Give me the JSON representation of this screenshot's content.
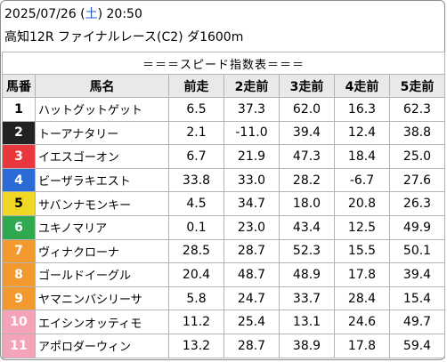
{
  "header": {
    "date_prefix": "2025/07/26 (",
    "weekday": "土",
    "date_suffix": ") 20:50",
    "race": "高知12R ファイナルレース(C2) ダ1600m"
  },
  "table": {
    "banner": "＝＝＝スピード指数表＝＝＝",
    "columns": [
      "馬番",
      "馬名",
      "前走",
      "2走前",
      "3走前",
      "4走前",
      "5走前"
    ],
    "rows": [
      {
        "num": "1",
        "name": "ハットグットゲット",
        "v": [
          "6.5",
          "37.3",
          "62.0",
          "16.3",
          "62.3"
        ],
        "bg": "#ffffff",
        "fg": "#000000"
      },
      {
        "num": "2",
        "name": "トーアナタリー",
        "v": [
          "2.1",
          "-11.0",
          "39.4",
          "12.4",
          "38.8"
        ],
        "bg": "#222222",
        "fg": "#ffffff"
      },
      {
        "num": "3",
        "name": "イエスゴーオン",
        "v": [
          "6.7",
          "21.9",
          "47.3",
          "18.4",
          "25.0"
        ],
        "bg": "#e8383d",
        "fg": "#ffffff"
      },
      {
        "num": "4",
        "name": "ビーザラキエスト",
        "v": [
          "33.8",
          "33.0",
          "28.2",
          "-6.7",
          "27.6"
        ],
        "bg": "#2a6bd6",
        "fg": "#ffffff"
      },
      {
        "num": "5",
        "name": "サバンナモンキー",
        "v": [
          "4.5",
          "34.7",
          "18.0",
          "20.8",
          "26.3"
        ],
        "bg": "#f0d625",
        "fg": "#000000"
      },
      {
        "num": "6",
        "name": "ユキノマリア",
        "v": [
          "0.1",
          "23.0",
          "43.4",
          "12.5",
          "49.9"
        ],
        "bg": "#2fa84f",
        "fg": "#ffffff"
      },
      {
        "num": "7",
        "name": "ヴィナクローナ",
        "v": [
          "28.5",
          "28.7",
          "52.3",
          "15.5",
          "50.1"
        ],
        "bg": "#f29a2e",
        "fg": "#ffffff"
      },
      {
        "num": "8",
        "name": "ゴールドイーグル",
        "v": [
          "20.4",
          "48.7",
          "48.9",
          "17.8",
          "39.4"
        ],
        "bg": "#f29a2e",
        "fg": "#ffffff"
      },
      {
        "num": "9",
        "name": "ヤマニンバシリーサ",
        "v": [
          "5.8",
          "24.7",
          "33.7",
          "28.4",
          "15.4"
        ],
        "bg": "#f29a2e",
        "fg": "#ffffff"
      },
      {
        "num": "10",
        "name": "エイシンオッティモ",
        "v": [
          "11.2",
          "25.4",
          "13.1",
          "24.6",
          "49.7"
        ],
        "bg": "#f4a3b8",
        "fg": "#ffffff"
      },
      {
        "num": "11",
        "name": "アポロダーウィン",
        "v": [
          "13.2",
          "28.7",
          "38.9",
          "17.8",
          "59.4"
        ],
        "bg": "#f4a3b8",
        "fg": "#ffffff"
      }
    ]
  }
}
